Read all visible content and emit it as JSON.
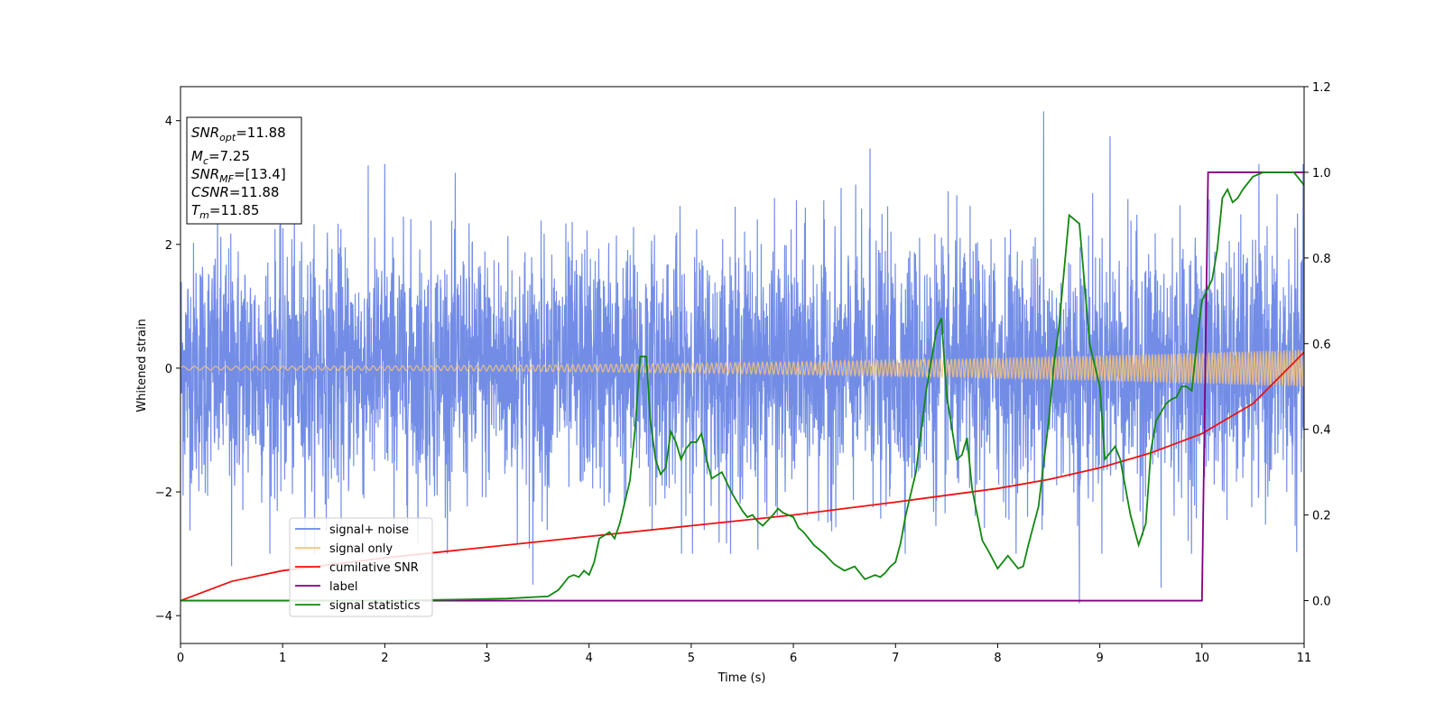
{
  "chart_data": {
    "type": "line",
    "xlabel": "Time (s)",
    "ylabel": "Whitened strain",
    "xlim": [
      0,
      11
    ],
    "ylim": [
      -4.45,
      4.55
    ],
    "y2lim": [
      -0.1,
      1.2
    ],
    "x_ticks": [
      "0",
      "1",
      "2",
      "3",
      "4",
      "5",
      "6",
      "7",
      "8",
      "9",
      "10",
      "11"
    ],
    "y_ticks": [
      "−4",
      "−2",
      "0",
      "2",
      "4"
    ],
    "y2_ticks": [
      "0.0",
      "0.2",
      "0.4",
      "0.6",
      "0.8",
      "1.0",
      "1.2"
    ],
    "grid": false,
    "legend_position": "lower-left",
    "info_box": {
      "lines": [
        {
          "base": "SNR",
          "sub": "opt",
          "value": "=11.88"
        },
        {
          "base": "M",
          "sub": "c",
          "value": "=7.25"
        },
        {
          "base": "SNR",
          "sub": "MF",
          "value": "=[13.4]"
        },
        {
          "base": "CSNR",
          "sub": "",
          "value": "=11.88"
        },
        {
          "base": "T",
          "sub": "m",
          "value": "=11.85"
        }
      ]
    },
    "series": [
      {
        "name": "signal+ noise",
        "color": "#6b87e5",
        "axis": "left",
        "description_range": [
          -3.8,
          4.2
        ],
        "spikes": [
          [
            0.5,
            -3.2
          ],
          [
            8.8,
            -3.8
          ],
          [
            8.45,
            4.15
          ],
          [
            9.1,
            3.75
          ],
          [
            9.6,
            -3.55
          ],
          [
            3.45,
            -3.5
          ],
          [
            2.0,
            3.3
          ],
          [
            6.75,
            3.55
          ]
        ]
      },
      {
        "name": "signal only",
        "color": "#f6c37a",
        "axis": "left",
        "amplitude_start": 0.03,
        "amplitude_end": 0.3
      },
      {
        "name": "cumilative SNR",
        "color": "#ee1111",
        "axis": "right",
        "x": [
          0,
          0.5,
          1,
          2,
          3,
          4,
          5,
          6,
          7,
          8,
          8.5,
          9,
          9.5,
          10,
          10.5,
          11
        ],
        "y": [
          0.0,
          0.045,
          0.07,
          0.1,
          0.125,
          0.15,
          0.175,
          0.2,
          0.23,
          0.262,
          0.283,
          0.31,
          0.345,
          0.39,
          0.46,
          0.58
        ]
      },
      {
        "name": "label",
        "color": "#800080",
        "axis": "right",
        "x": [
          0,
          10.0,
          10.06,
          11
        ],
        "y": [
          0.0,
          0.0,
          1.0,
          1.0
        ]
      },
      {
        "name": "signal statistics",
        "color": "#118811",
        "axis": "right",
        "x": [
          0,
          1,
          2,
          2.8,
          3.2,
          3.6,
          3.7,
          3.8,
          3.85,
          3.9,
          3.95,
          4.0,
          4.05,
          4.1,
          4.2,
          4.25,
          4.3,
          4.4,
          4.45,
          4.5,
          4.56,
          4.6,
          4.65,
          4.7,
          4.75,
          4.8,
          4.85,
          4.9,
          4.95,
          5.0,
          5.05,
          5.1,
          5.15,
          5.2,
          5.3,
          5.4,
          5.5,
          5.55,
          5.6,
          5.65,
          5.7,
          5.8,
          5.85,
          5.9,
          6.0,
          6.05,
          6.1,
          6.2,
          6.3,
          6.4,
          6.5,
          6.6,
          6.7,
          6.8,
          6.85,
          6.9,
          6.95,
          7.0,
          7.05,
          7.1,
          7.2,
          7.3,
          7.4,
          7.45,
          7.5,
          7.6,
          7.65,
          7.7,
          7.75,
          7.85,
          7.9,
          8.0,
          8.1,
          8.2,
          8.25,
          8.3,
          8.4,
          8.5,
          8.55,
          8.6,
          8.7,
          8.8,
          8.9,
          9.0,
          9.05,
          9.15,
          9.2,
          9.3,
          9.38,
          9.45,
          9.5,
          9.55,
          9.65,
          9.7,
          9.75,
          9.8,
          9.85,
          9.9,
          9.95,
          10.0,
          10.1,
          10.15,
          10.2,
          10.25,
          10.3,
          10.35,
          10.4,
          10.5,
          10.6,
          10.7,
          10.8,
          10.9,
          11.0
        ],
        "y": [
          0.0,
          0.0,
          0.0,
          0.003,
          0.005,
          0.01,
          0.025,
          0.055,
          0.06,
          0.055,
          0.07,
          0.06,
          0.09,
          0.145,
          0.16,
          0.145,
          0.18,
          0.28,
          0.4,
          0.57,
          0.57,
          0.42,
          0.33,
          0.295,
          0.31,
          0.395,
          0.37,
          0.33,
          0.355,
          0.37,
          0.37,
          0.39,
          0.33,
          0.285,
          0.3,
          0.25,
          0.21,
          0.195,
          0.2,
          0.185,
          0.175,
          0.2,
          0.215,
          0.205,
          0.195,
          0.17,
          0.16,
          0.13,
          0.11,
          0.085,
          0.07,
          0.08,
          0.05,
          0.06,
          0.055,
          0.065,
          0.08,
          0.09,
          0.135,
          0.2,
          0.3,
          0.49,
          0.63,
          0.66,
          0.48,
          0.33,
          0.34,
          0.38,
          0.26,
          0.14,
          0.12,
          0.075,
          0.105,
          0.075,
          0.08,
          0.13,
          0.22,
          0.42,
          0.55,
          0.64,
          0.9,
          0.88,
          0.6,
          0.5,
          0.33,
          0.36,
          0.33,
          0.2,
          0.13,
          0.18,
          0.35,
          0.42,
          0.46,
          0.47,
          0.475,
          0.5,
          0.5,
          0.49,
          0.6,
          0.7,
          0.75,
          0.82,
          0.94,
          0.96,
          0.93,
          0.94,
          0.96,
          0.99,
          1.0,
          1.0,
          1.0,
          1.0,
          0.97
        ]
      }
    ]
  }
}
